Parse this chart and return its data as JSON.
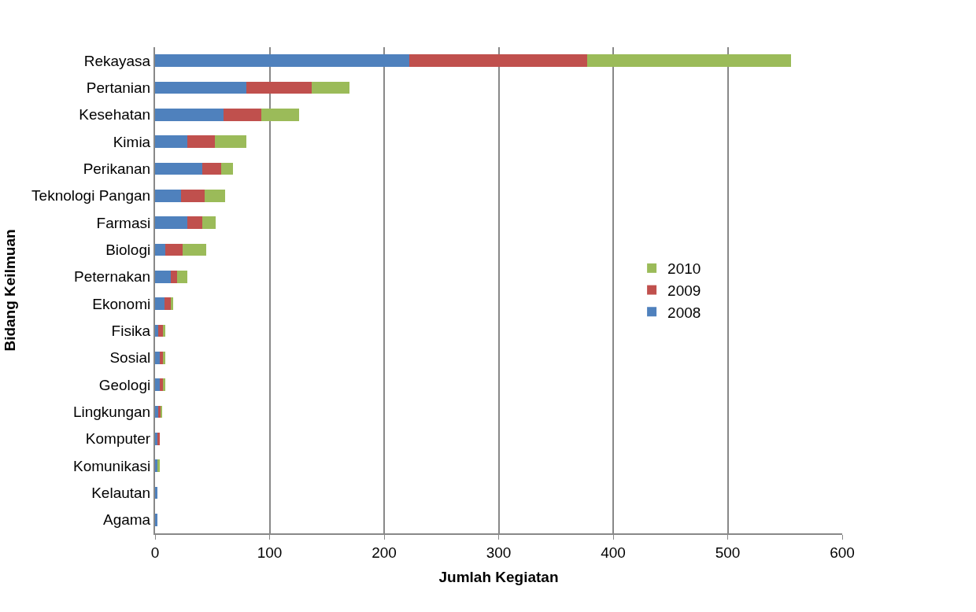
{
  "chart_data": {
    "type": "bar",
    "orientation": "horizontal",
    "stacked": true,
    "xlabel": "Jumlah Kegiatan",
    "ylabel": "Bidang Keilmuan",
    "categories": [
      "Rekayasa",
      "Pertanian",
      "Kesehatan",
      "Kimia",
      "Perikanan",
      "Teknologi Pangan",
      "Farmasi",
      "Biologi",
      "Peternakan",
      "Ekonomi",
      "Fisika",
      "Sosial",
      "Geologi",
      "Lingkungan",
      "Komputer",
      "Komunikasi",
      "Kelautan",
      "Agama"
    ],
    "series": [
      {
        "name": "2008",
        "color": "#4f81bd",
        "values": [
          222,
          80,
          60,
          28,
          41,
          23,
          28,
          9,
          14,
          8,
          3,
          4,
          4,
          3,
          2,
          2,
          2,
          2
        ]
      },
      {
        "name": "2009",
        "color": "#c0504d",
        "values": [
          155,
          57,
          33,
          24,
          17,
          20,
          13,
          15,
          5,
          6,
          4,
          3,
          3,
          2,
          2,
          0,
          0,
          0
        ]
      },
      {
        "name": "2010",
        "color": "#9bbb59",
        "values": [
          178,
          33,
          33,
          28,
          10,
          18,
          12,
          21,
          9,
          2,
          2,
          2,
          2,
          1,
          0,
          2,
          0,
          0
        ]
      }
    ],
    "xlim": [
      0,
      600
    ],
    "xticks": [
      0,
      100,
      200,
      300,
      400,
      500,
      600
    ],
    "grid": "x",
    "legend": "right"
  }
}
